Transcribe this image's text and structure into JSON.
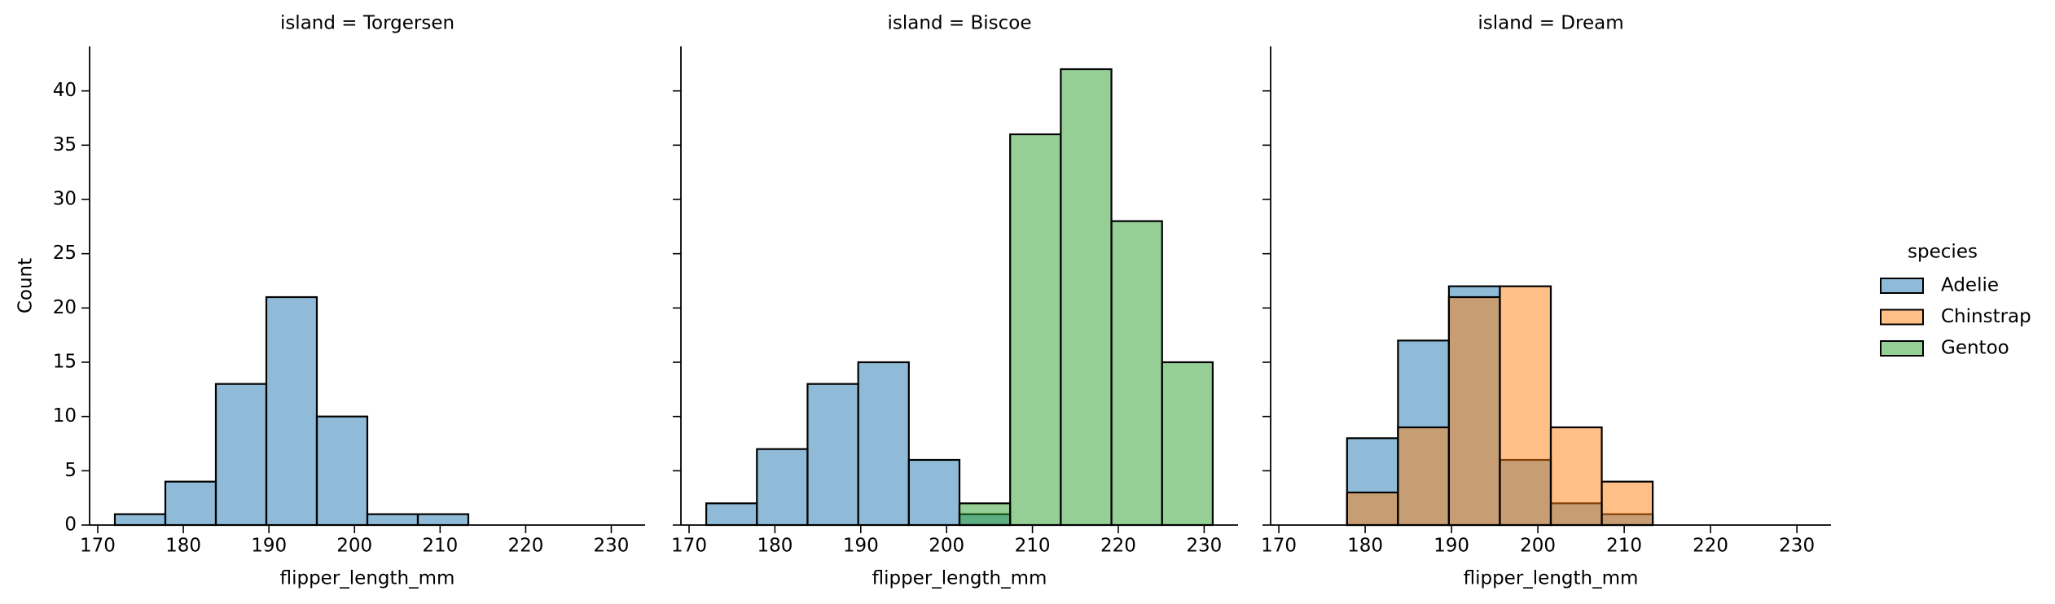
{
  "chart_data": [
    {
      "type": "histogram",
      "title": "island = Torgersen",
      "xlabel": "flipper_length_mm",
      "ylabel": "Count",
      "bins": [
        172,
        177.9,
        183.8,
        189.7,
        195.6,
        201.5,
        207.4,
        213.3,
        219.2,
        225.1,
        231
      ],
      "series": [
        {
          "name": "Adelie",
          "color": "#1f77b4",
          "values": [
            1,
            4,
            13,
            21,
            10,
            1,
            1,
            0,
            0,
            0
          ]
        }
      ],
      "xlim": [
        169.05,
        233.95
      ],
      "xticks": [
        170,
        180,
        190,
        200,
        210,
        220,
        230
      ],
      "ylim": [
        0,
        44.1
      ],
      "yticks": [
        0,
        5,
        10,
        15,
        20,
        25,
        30,
        35,
        40
      ]
    },
    {
      "type": "histogram",
      "title": "island = Biscoe",
      "xlabel": "flipper_length_mm",
      "bins": [
        172,
        177.9,
        183.8,
        189.7,
        195.6,
        201.5,
        207.4,
        213.3,
        219.2,
        225.1,
        231
      ],
      "series": [
        {
          "name": "Adelie",
          "color": "#1f77b4",
          "values": [
            2,
            7,
            13,
            15,
            6,
            1,
            0,
            0,
            0,
            0
          ]
        },
        {
          "name": "Gentoo",
          "color": "#2ca02c",
          "values": [
            0,
            0,
            0,
            0,
            0,
            2,
            36,
            42,
            28,
            15
          ]
        }
      ],
      "xlim": [
        169.05,
        233.95
      ],
      "xticks": [
        170,
        180,
        190,
        200,
        210,
        220,
        230
      ],
      "ylim": [
        0,
        44.1
      ],
      "yticks": [
        0,
        5,
        10,
        15,
        20,
        25,
        30,
        35,
        40
      ]
    },
    {
      "type": "histogram",
      "title": "island = Dream",
      "xlabel": "flipper_length_mm",
      "bins": [
        172,
        177.9,
        183.8,
        189.7,
        195.6,
        201.5,
        207.4,
        213.3,
        219.2,
        225.1,
        231
      ],
      "series": [
        {
          "name": "Adelie",
          "color": "#1f77b4",
          "values": [
            0,
            8,
            17,
            22,
            6,
            2,
            1,
            0,
            0,
            0
          ]
        },
        {
          "name": "Chinstrap",
          "color": "#ff7f0e",
          "values": [
            0,
            3,
            9,
            21,
            22,
            9,
            4,
            0,
            0,
            0
          ]
        }
      ],
      "xlim": [
        169.05,
        233.95
      ],
      "xticks": [
        170,
        180,
        190,
        200,
        210,
        220,
        230
      ],
      "ylim": [
        0,
        44.1
      ],
      "yticks": [
        0,
        5,
        10,
        15,
        20,
        25,
        30,
        35,
        40
      ]
    }
  ],
  "legend": {
    "title": "species",
    "alpha": 0.5,
    "entries": [
      {
        "name": "Adelie",
        "color": "#1f77b4"
      },
      {
        "name": "Chinstrap",
        "color": "#ff7f0e"
      },
      {
        "name": "Gentoo",
        "color": "#2ca02c"
      }
    ]
  }
}
